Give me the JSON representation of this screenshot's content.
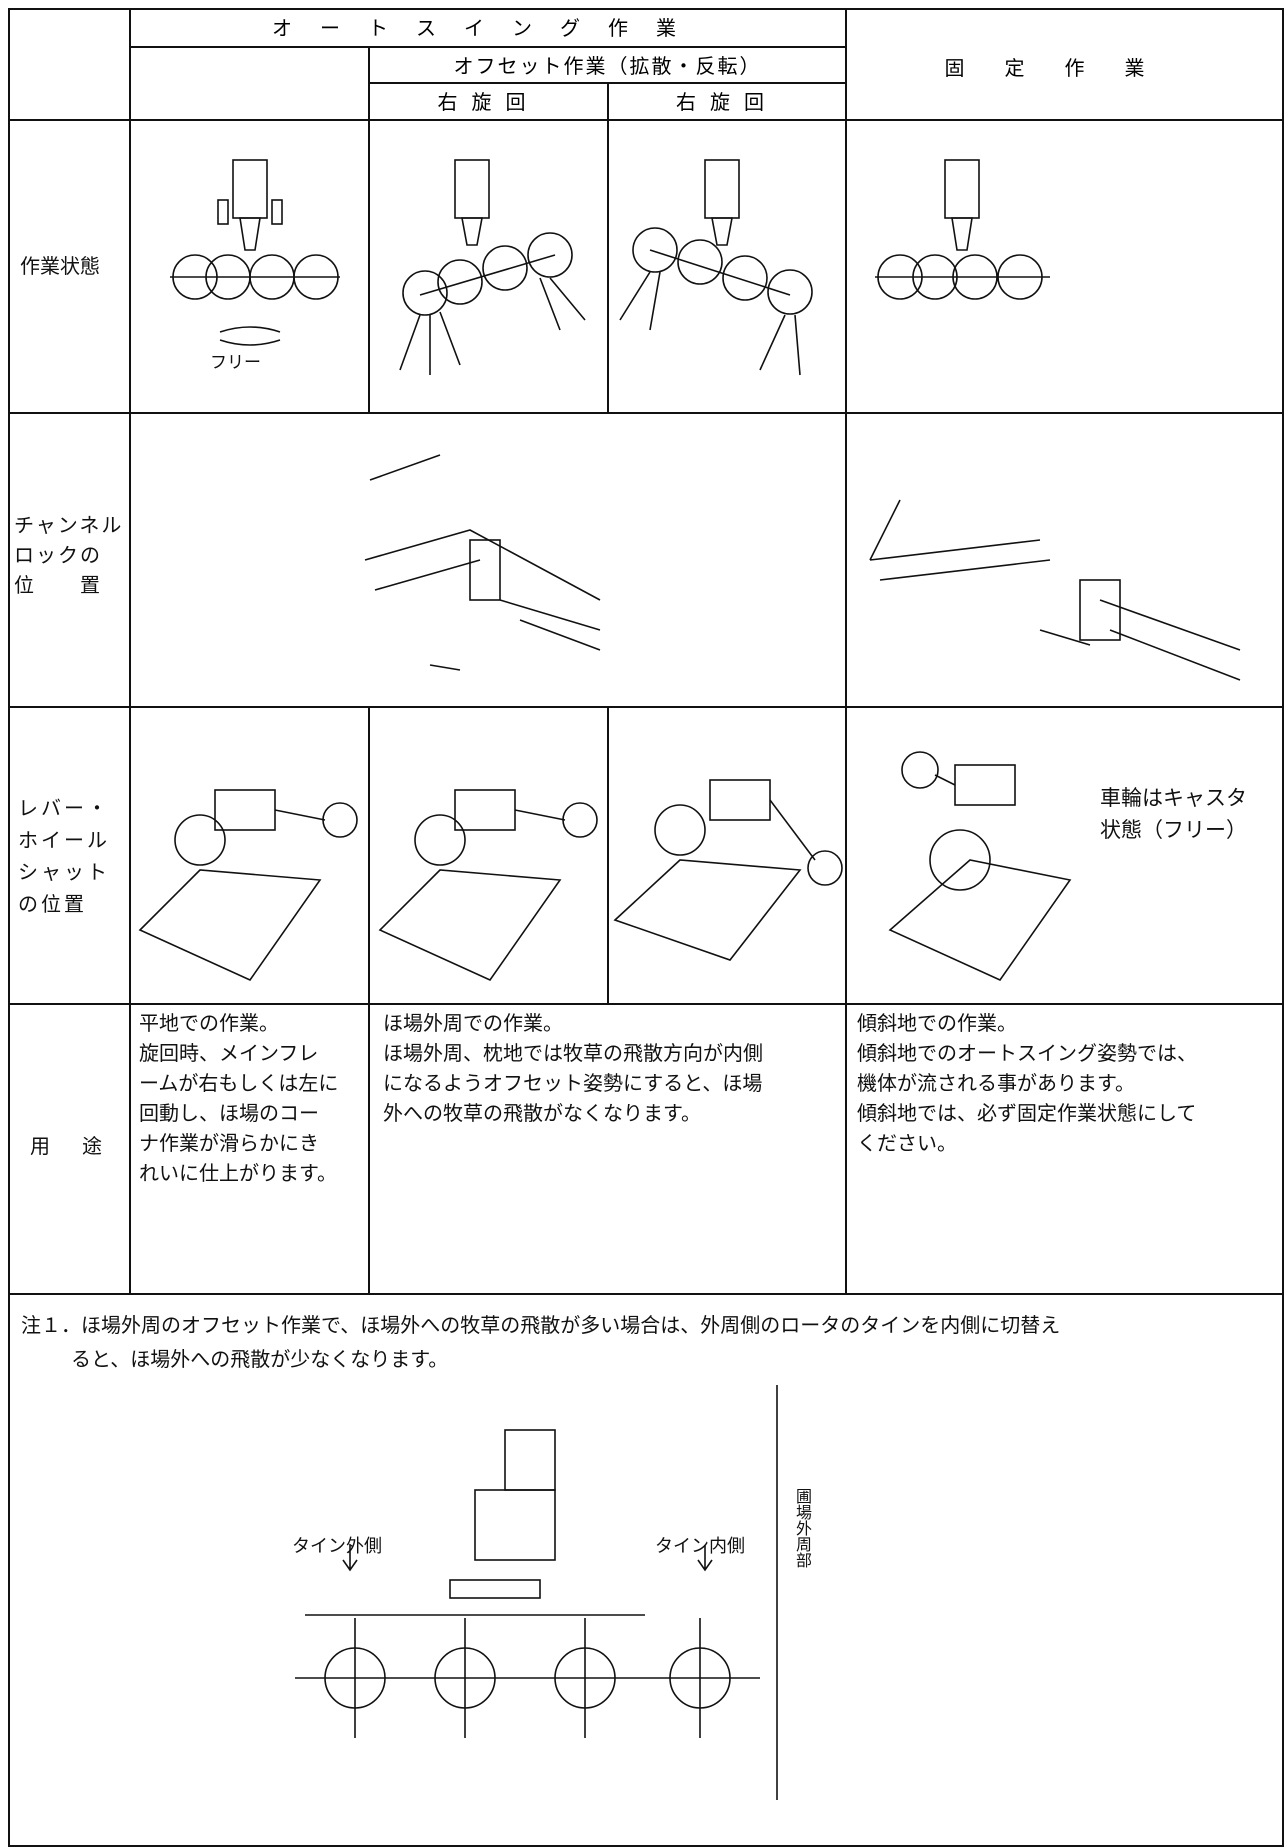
{
  "table": {
    "header": {
      "auto_swing": "オートスイング作業",
      "offset": "オフセット作業（拡散・反転）",
      "right_turn_a": "右旋回",
      "right_turn_b": "右旋回",
      "fixed": "固定作業"
    },
    "rows": [
      {
        "label": [
          "作業状態"
        ],
        "free_label": "フリー"
      },
      {
        "label": [
          "チャンネル",
          "ロックの",
          "位　　置"
        ]
      },
      {
        "label": [
          "レバー・",
          "ホイール",
          "シャット",
          "の位置"
        ],
        "caster_note": [
          "車輪はキャスタ",
          "状態（フリー）"
        ]
      },
      {
        "label": [
          "用　途"
        ],
        "flat": [
          "平地での作業。",
          "旋回時、メインフレ",
          "ームが右もしくは左に",
          "回動し、ほ場のコー",
          "ナ作業が滑らかにき",
          "れいに仕上がります。"
        ],
        "perimeter": [
          "ほ場外周での作業。",
          "ほ場外周、枕地では牧草の飛散方向が内側",
          "になるようオフセット姿勢にすると、ほ場",
          "外への牧草の飛散がなくなります。"
        ],
        "slope": [
          "傾斜地での作業。",
          "傾斜地でのオートスイング姿勢では、",
          "機体が流される事があります。",
          "傾斜地では、必ず固定作業状態にして",
          "ください。"
        ]
      }
    ]
  },
  "note": {
    "text": [
      "注１．ほ場外周のオフセット作業で、ほ場外への牧草の飛散が多い場合は、外周側のロータのタインを内側に切替え",
      "ると、ほ場外への飛散が少なくなります。"
    ],
    "diagram": {
      "tine_outer": "タイン外側",
      "tine_inner": "タイン内側",
      "field_edge": "圃場外周部"
    }
  }
}
